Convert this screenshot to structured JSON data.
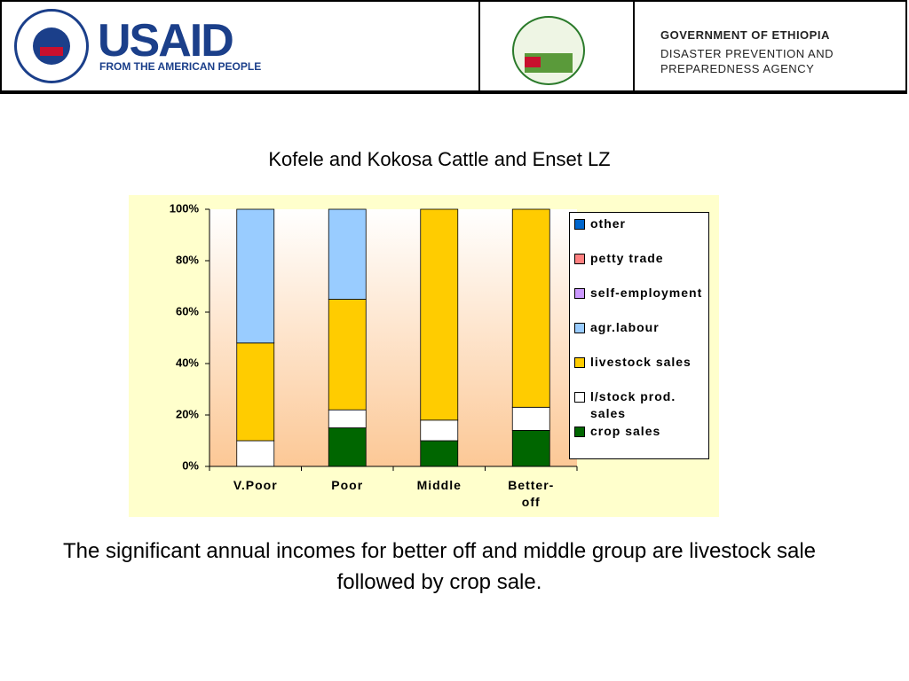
{
  "header": {
    "usaid": "USAID",
    "usaid_tagline": "FROM THE AMERICAN PEOPLE",
    "gov_title": "GOVERNMENT OF ETHIOPIA",
    "gov_agency": "DISASTER PREVENTION AND PREPAREDNESS AGENCY"
  },
  "chart_data": {
    "type": "stacked-bar",
    "title": "Kofele and Kokosa Cattle and Enset LZ",
    "categories": [
      "V.Poor",
      "Poor",
      "Middle",
      "Better-off"
    ],
    "series": [
      {
        "name": "crop sales",
        "color": "#006600",
        "values": [
          0,
          15,
          10,
          14
        ]
      },
      {
        "name": "l/stock prod. sales",
        "color": "#ffffff",
        "values": [
          10,
          7,
          8,
          9
        ]
      },
      {
        "name": "livestock sales",
        "color": "#ffcc00",
        "values": [
          38,
          43,
          82,
          77
        ]
      },
      {
        "name": "agr.labour",
        "color": "#99ccff",
        "values": [
          52,
          35,
          0,
          0
        ]
      },
      {
        "name": "self-employment",
        "color": "#cc99ff",
        "values": [
          0,
          0,
          0,
          0
        ]
      },
      {
        "name": "petty trade",
        "color": "#ff8080",
        "values": [
          0,
          0,
          0,
          0
        ]
      },
      {
        "name": "other",
        "color": "#0066cc",
        "values": [
          0,
          0,
          0,
          0
        ]
      }
    ],
    "ylim": [
      0,
      100
    ],
    "yticks": [
      {
        "value": 0,
        "label": "0%"
      },
      {
        "value": 20,
        "label": "20%"
      },
      {
        "value": 40,
        "label": "40%"
      },
      {
        "value": 60,
        "label": "60%"
      },
      {
        "value": 80,
        "label": "80%"
      },
      {
        "value": 100,
        "label": "100%"
      }
    ],
    "grid": false,
    "legend": "right"
  },
  "caption": "The significant annual incomes for better off and middle group are livestock sale followed by crop sale."
}
